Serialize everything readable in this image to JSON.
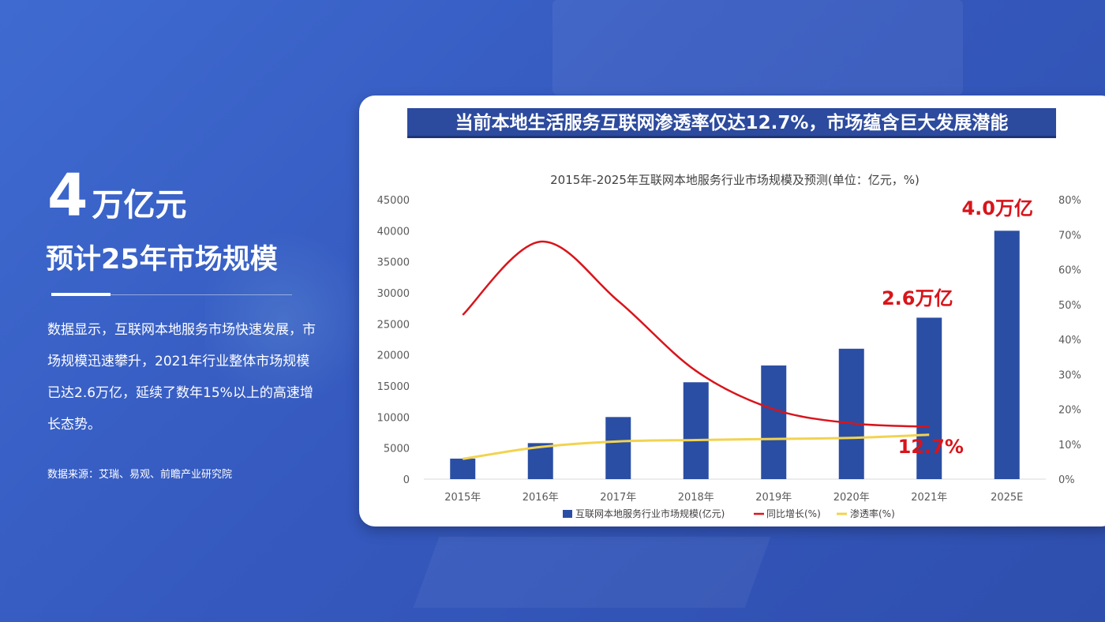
{
  "left": {
    "big_number": "4",
    "big_unit": "万亿元",
    "subtitle": "预计25年市场规模",
    "description": "数据显示，互联网本地服务市场快速发展，市场规模迅速攀升，2021年行业整体市场规模已达2.6万亿，延续了数年15%以上的高速增长态势。",
    "source": "数据来源：艾瑞、易观、前瞻产业研究院"
  },
  "banner": "当前本地生活服务互联网渗透率仅达12.7%，市场蕴含巨大发展潜能",
  "colors": {
    "background": "#3a62c7",
    "bar": "#2a4ea3",
    "growth_line": "#d9141b",
    "penetration_line": "#f2d34f",
    "callout": "#d9141b"
  },
  "chart_data": {
    "type": "bar",
    "title": "2015年-2025年互联网本地服务行业市场规模及预测(单位：亿元，%)",
    "categories": [
      "2015年",
      "2016年",
      "2017年",
      "2018年",
      "2019年",
      "2020年",
      "2021年",
      "2025E"
    ],
    "y_left": {
      "range": [
        0,
        45000
      ],
      "ticks": [
        "0",
        "5000",
        "10000",
        "15000",
        "20000",
        "25000",
        "30000",
        "35000",
        "40000",
        "45000"
      ]
    },
    "y_right": {
      "range": [
        0,
        80
      ],
      "ticks": [
        "0%",
        "10%",
        "20%",
        "30%",
        "40%",
        "50%",
        "60%",
        "70%",
        "80%"
      ]
    },
    "series": [
      {
        "name": "互联网本地服务行业市场规模(亿元)",
        "type": "bar",
        "axis": "left",
        "values": [
          3300,
          5800,
          10000,
          15600,
          18300,
          21000,
          26000,
          40000
        ]
      },
      {
        "name": "同比增长(%)",
        "type": "line",
        "axis": "right",
        "values": [
          47,
          68,
          51,
          31,
          20,
          16,
          15,
          null
        ]
      },
      {
        "name": "渗透率(%)",
        "type": "line",
        "axis": "right",
        "values": [
          5.8,
          9.2,
          10.8,
          11.2,
          11.5,
          11.8,
          12.7,
          null
        ]
      }
    ],
    "annotations": [
      "4.0万亿",
      "2.6万亿",
      "12.7%"
    ],
    "legend": "bottom"
  }
}
